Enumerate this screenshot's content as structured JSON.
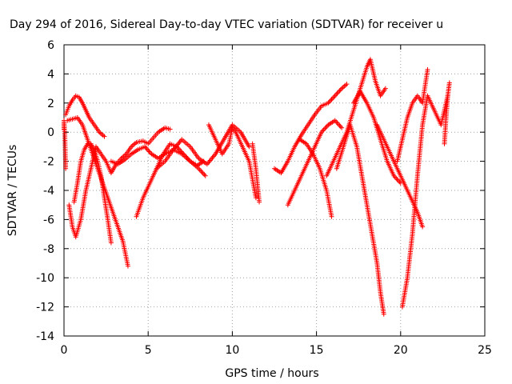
{
  "chart_data": {
    "type": "scatter",
    "title": "Day 294 of 2016, Sidereal Day-to-day VTEC variation (SDTVAR) for receiver u",
    "xlabel": "GPS time / hours",
    "ylabel": "SDTVAR / TECUs",
    "xlim": [
      0,
      25
    ],
    "ylim": [
      -14,
      6
    ],
    "xticks": [
      0,
      5,
      10,
      15,
      20,
      25
    ],
    "yticks": [
      -14,
      -12,
      -10,
      -8,
      -6,
      -4,
      -2,
      0,
      2,
      4,
      6
    ],
    "grid": true,
    "marker": "+",
    "color": "#ff0000",
    "series": [
      {
        "x": [
          0.1,
          0.3,
          0.5,
          0.7,
          0.9,
          1.1,
          1.3,
          1.5,
          1.8,
          2.1,
          2.4
        ],
        "y": [
          1.2,
          1.8,
          2.2,
          2.5,
          2.4,
          2.0,
          1.5,
          1.0,
          0.5,
          0.0,
          -0.3
        ]
      },
      {
        "x": [
          0.2,
          0.5,
          0.8,
          1.1,
          1.4,
          1.7,
          2.0,
          2.3,
          2.6,
          2.9,
          3.2,
          3.5,
          3.8
        ],
        "y": [
          0.8,
          0.9,
          1.0,
          0.5,
          -0.5,
          -1.5,
          -2.5,
          -3.5,
          -4.5,
          -5.5,
          -6.5,
          -7.5,
          -9.2
        ]
      },
      {
        "x": [
          0.3,
          0.5,
          0.7,
          1.0,
          1.3,
          1.6,
          1.9,
          2.2,
          2.5,
          2.8,
          3.1,
          3.4,
          3.7,
          4.0,
          4.3,
          4.7,
          5.0,
          5.3,
          5.6,
          6.0,
          6.3
        ],
        "y": [
          -5.0,
          -6.5,
          -7.2,
          -6.0,
          -4.0,
          -2.5,
          -1.0,
          -1.5,
          -2.0,
          -2.8,
          -2.2,
          -1.8,
          -1.5,
          -1.0,
          -0.7,
          -0.6,
          -0.8,
          -0.4,
          0.0,
          0.3,
          0.2
        ]
      },
      {
        "x": [
          0.6,
          0.8,
          1.0,
          1.2,
          1.4,
          1.6,
          1.8,
          2.0,
          2.2,
          2.4,
          2.6,
          2.8
        ],
        "y": [
          -4.8,
          -3.5,
          -2.0,
          -1.2,
          -0.8,
          -0.8,
          -1.2,
          -2.0,
          -3.0,
          -4.5,
          -6.0,
          -7.6
        ]
      },
      {
        "x": [
          2.8,
          3.2,
          3.6,
          4.0,
          4.4,
          4.8,
          5.2,
          5.6,
          6.0,
          6.5,
          7.0,
          7.5,
          8.0,
          8.4
        ],
        "y": [
          -2.0,
          -2.2,
          -1.9,
          -1.5,
          -1.2,
          -1.0,
          -1.5,
          -1.8,
          -1.5,
          -1.2,
          -1.5,
          -2.0,
          -2.5,
          -3.0
        ]
      },
      {
        "x": [
          4.3,
          4.7,
          5.1,
          5.5,
          5.9,
          6.3,
          6.7,
          7.1,
          7.5,
          7.9,
          8.3
        ],
        "y": [
          -5.8,
          -4.5,
          -3.5,
          -2.5,
          -1.5,
          -0.8,
          -1.0,
          -1.5,
          -2.0,
          -2.3,
          -2.0
        ]
      },
      {
        "x": [
          5.5,
          6.0,
          6.5,
          7.0,
          7.5,
          8.0,
          8.5,
          9.0,
          9.5,
          10.0,
          10.5,
          11.0
        ],
        "y": [
          -2.5,
          -2.0,
          -1.2,
          -0.5,
          -1.0,
          -1.8,
          -2.2,
          -1.5,
          -0.5,
          0.5,
          0.0,
          -1.0
        ]
      },
      {
        "x": [
          8.6,
          9.0,
          9.4,
          9.8,
          10.0,
          10.2,
          10.6,
          11.0,
          11.4
        ],
        "y": [
          0.5,
          -0.5,
          -1.5,
          -0.8,
          0.3,
          0.0,
          -1.0,
          -2.0,
          -4.5
        ]
      },
      {
        "x": [
          11.2,
          11.4,
          11.6
        ],
        "y": [
          -0.8,
          -2.5,
          -4.8
        ]
      },
      {
        "x": [
          12.5,
          12.9,
          13.3,
          13.7,
          14.1,
          14.5,
          14.9,
          15.3,
          15.7,
          16.1,
          16.5,
          16.8
        ],
        "y": [
          -2.5,
          -2.8,
          -2.0,
          -1.0,
          -0.2,
          0.5,
          1.2,
          1.8,
          2.0,
          2.5,
          3.0,
          3.3
        ]
      },
      {
        "x": [
          13.3,
          13.7,
          14.1,
          14.5,
          14.9,
          15.3,
          15.7,
          16.1,
          16.5
        ],
        "y": [
          -5.0,
          -4.0,
          -3.0,
          -2.0,
          -1.0,
          0.0,
          0.5,
          0.8,
          0.3
        ]
      },
      {
        "x": [
          14.0,
          14.4,
          14.8,
          15.2,
          15.6,
          15.9
        ],
        "y": [
          -0.5,
          -0.8,
          -1.5,
          -2.5,
          -4.0,
          -5.8
        ]
      },
      {
        "x": [
          15.6,
          16.0,
          16.4,
          16.8,
          17.2,
          17.6,
          18.0,
          18.2,
          18.5,
          18.8,
          19.1
        ],
        "y": [
          -3.0,
          -2.0,
          -1.0,
          0.0,
          1.5,
          3.0,
          4.5,
          5.0,
          3.5,
          2.5,
          3.0
        ]
      },
      {
        "x": [
          16.2,
          16.6,
          17.0,
          17.4,
          17.7,
          18.0,
          18.3,
          18.6,
          18.8,
          19.0
        ],
        "y": [
          -2.5,
          -1.0,
          0.5,
          -1.0,
          -3.0,
          -5.0,
          -7.0,
          -9.0,
          -11.0,
          -12.5
        ]
      },
      {
        "x": [
          17.2,
          17.6,
          18.0,
          18.4,
          18.8,
          19.2,
          19.6,
          20.0
        ],
        "y": [
          2.0,
          2.8,
          2.0,
          1.0,
          -0.5,
          -2.0,
          -3.0,
          -3.5
        ]
      },
      {
        "x": [
          18.6,
          19.0,
          19.4,
          19.8,
          20.2,
          20.6,
          21.0,
          21.3
        ],
        "y": [
          0.5,
          -0.5,
          -1.5,
          -2.5,
          -3.5,
          -4.5,
          -5.5,
          -6.5
        ]
      },
      {
        "x": [
          20.1,
          20.4,
          20.7,
          21.0,
          21.3,
          21.6,
          22.0,
          22.4,
          22.8
        ],
        "y": [
          -12.0,
          -10.0,
          -7.0,
          -3.0,
          0.5,
          2.5,
          1.5,
          0.5,
          2.5
        ]
      },
      {
        "x": [
          19.8,
          20.1,
          20.4,
          20.7,
          21.0,
          21.3,
          21.6
        ],
        "y": [
          -2.0,
          -0.5,
          1.0,
          2.0,
          2.5,
          2.0,
          4.3
        ]
      },
      {
        "x": [
          22.6,
          22.7,
          22.8,
          22.9
        ],
        "y": [
          -0.8,
          1.0,
          2.5,
          3.4
        ]
      },
      {
        "x": [
          0.0,
          0.0,
          0.05,
          0.1
        ],
        "y": [
          0.2,
          0.8,
          -0.2,
          -2.5
        ]
      }
    ]
  }
}
